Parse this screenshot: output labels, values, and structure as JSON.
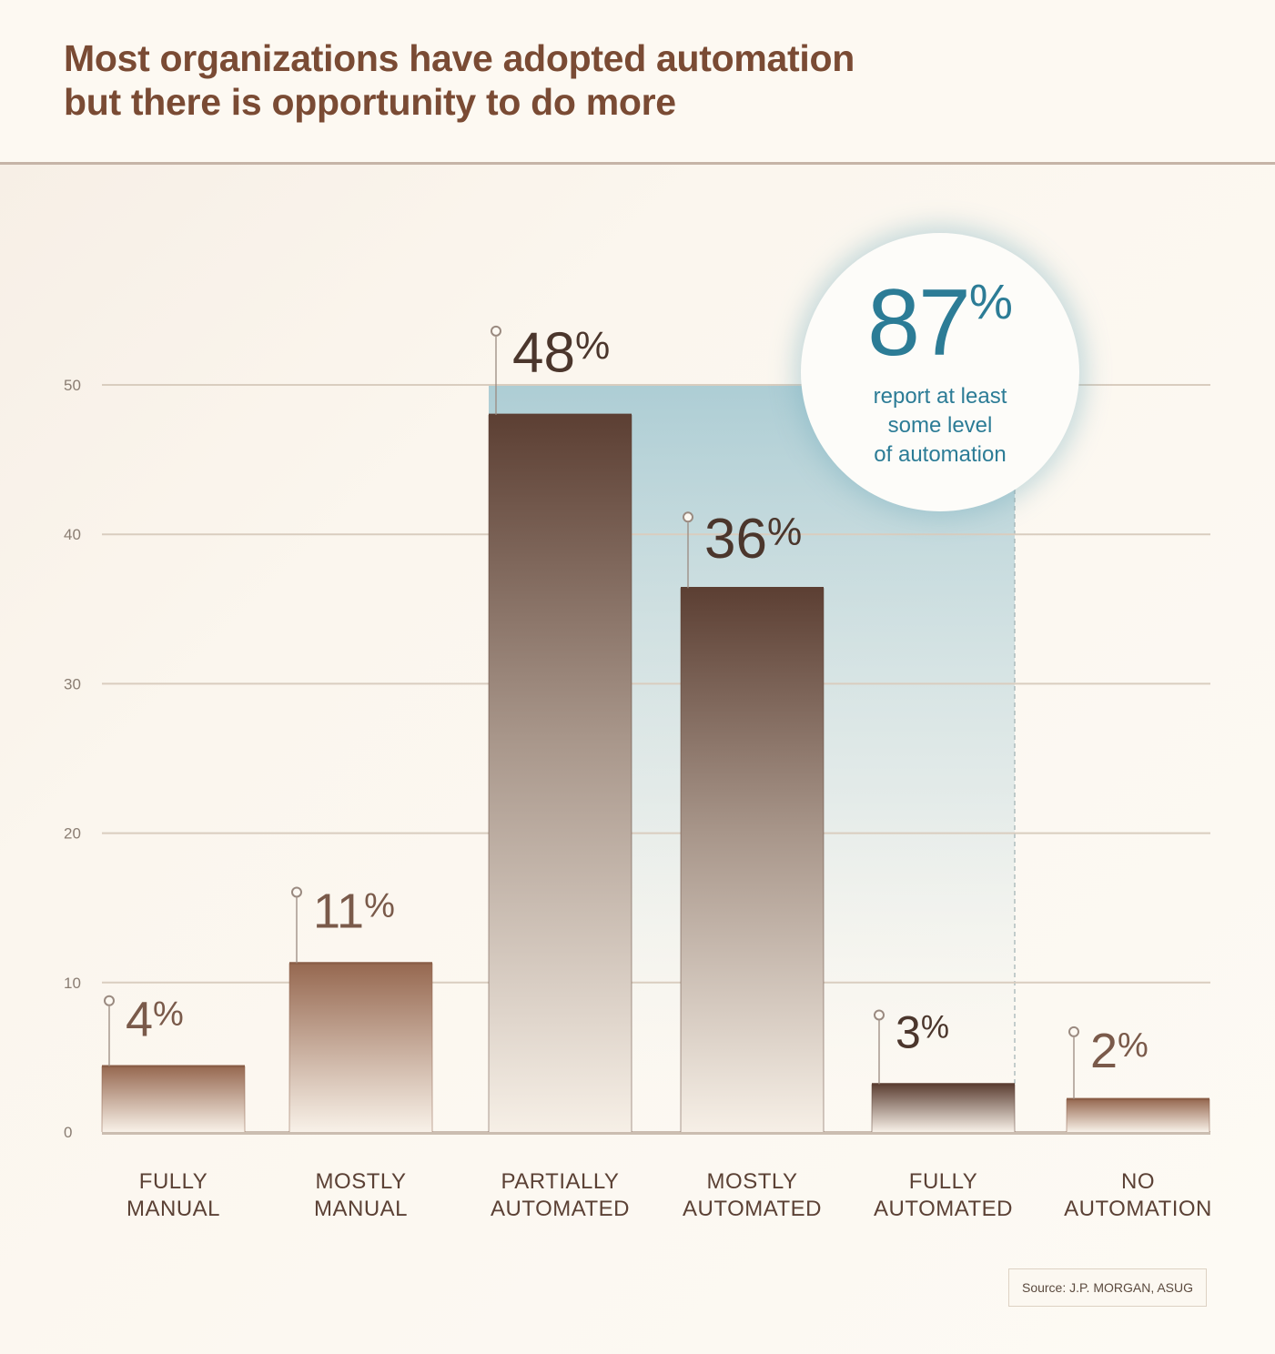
{
  "title_line1": "Most organizations have adopted automation",
  "title_line2": "but there is opportunity to do more",
  "callout": {
    "value": "87",
    "unit": "%",
    "line1": "report at least",
    "line2": "some level",
    "line3": "of automation"
  },
  "source": "Source: J.P. MORGAN, ASUG",
  "colors": {
    "title": "#7a4b34",
    "accent": "#2c7c96",
    "bar_dark": "#5c3f33",
    "bar_brown": "#966850",
    "highlight": "#a9cbd3"
  },
  "chart_data": {
    "type": "bar",
    "categories": [
      [
        "FULLY",
        "MANUAL"
      ],
      [
        "MOSTLY",
        "MANUAL"
      ],
      [
        "PARTIALLY",
        "AUTOMATED"
      ],
      [
        "MOSTLY",
        "AUTOMATED"
      ],
      [
        "FULLY",
        "AUTOMATED"
      ],
      [
        "NO",
        "AUTOMATION"
      ]
    ],
    "values": [
      4.4,
      11.3,
      48,
      36.4,
      3.2,
      2.2
    ],
    "value_labels": [
      "4",
      "11",
      "48",
      "36",
      "3",
      "2"
    ],
    "unit": "%",
    "ylim": [
      0,
      50
    ],
    "yticks": [
      0,
      10,
      20,
      30,
      40,
      50
    ],
    "grid": true,
    "highlight_range": [
      "PARTIALLY AUTOMATED",
      "FULLY AUTOMATED"
    ]
  }
}
